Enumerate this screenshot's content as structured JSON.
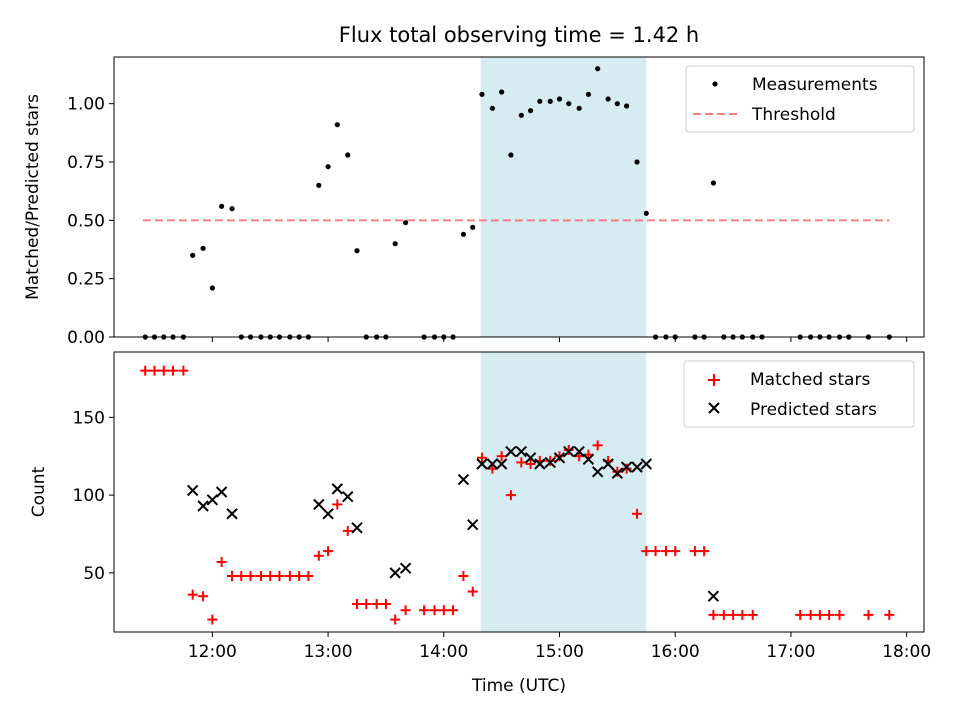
{
  "title": "Flux total observing time = 1.42 h",
  "colors": {
    "measurement": "#000000",
    "threshold": "#f08080",
    "matched": "#ff0000",
    "predicted": "#000000",
    "span": "#add8e6"
  },
  "chart_data": [
    {
      "type": "scatter",
      "panel": "top",
      "ylabel": "Matched/Predicted stars",
      "xlim": [
        11.15,
        18.15
      ],
      "ylim": [
        0,
        1.2
      ],
      "yticks": [
        0,
        0.25,
        0.5,
        0.75,
        1.0
      ],
      "ytick_labels": [
        "0.00",
        "0.25",
        "0.50",
        "0.75",
        "1.00"
      ],
      "highlight_span": [
        14.32,
        15.75
      ],
      "legend": {
        "placement": "top-right",
        "entries": [
          "Measurements",
          "Threshold"
        ]
      },
      "threshold": {
        "name": "Threshold",
        "y": 0.5,
        "x": [
          11.4,
          17.85
        ]
      },
      "series": [
        {
          "name": "Measurements",
          "points": [
            [
              11.42,
              0
            ],
            [
              11.5,
              0
            ],
            [
              11.58,
              0
            ],
            [
              11.66,
              0
            ],
            [
              11.75,
              0
            ],
            [
              11.83,
              0.35
            ],
            [
              11.92,
              0.38
            ],
            [
              12.0,
              0.21
            ],
            [
              12.08,
              0.56
            ],
            [
              12.17,
              0.55
            ],
            [
              12.25,
              0
            ],
            [
              12.33,
              0
            ],
            [
              12.42,
              0
            ],
            [
              12.5,
              0
            ],
            [
              12.58,
              0
            ],
            [
              12.67,
              0
            ],
            [
              12.75,
              0
            ],
            [
              12.83,
              0
            ],
            [
              12.92,
              0.65
            ],
            [
              13.0,
              0.73
            ],
            [
              13.08,
              0.91
            ],
            [
              13.17,
              0.78
            ],
            [
              13.25,
              0.37
            ],
            [
              13.33,
              0
            ],
            [
              13.42,
              0
            ],
            [
              13.5,
              0
            ],
            [
              13.58,
              0.4
            ],
            [
              13.67,
              0.49
            ],
            [
              13.83,
              0
            ],
            [
              13.92,
              0
            ],
            [
              14.0,
              0
            ],
            [
              14.08,
              0
            ],
            [
              14.17,
              0.44
            ],
            [
              14.25,
              0.47
            ],
            [
              14.33,
              1.04
            ],
            [
              14.42,
              0.98
            ],
            [
              14.5,
              1.05
            ],
            [
              14.58,
              0.78
            ],
            [
              14.67,
              0.95
            ],
            [
              14.75,
              0.97
            ],
            [
              14.83,
              1.01
            ],
            [
              14.92,
              1.01
            ],
            [
              15.0,
              1.02
            ],
            [
              15.08,
              1.0
            ],
            [
              15.17,
              0.98
            ],
            [
              15.25,
              1.04
            ],
            [
              15.33,
              1.15
            ],
            [
              15.42,
              1.02
            ],
            [
              15.5,
              1.0
            ],
            [
              15.58,
              0.99
            ],
            [
              15.67,
              0.75
            ],
            [
              15.75,
              0.53
            ],
            [
              15.83,
              0
            ],
            [
              15.92,
              0
            ],
            [
              16.0,
              0
            ],
            [
              16.17,
              0
            ],
            [
              16.25,
              0
            ],
            [
              16.33,
              0.66
            ],
            [
              16.42,
              0
            ],
            [
              16.5,
              0
            ],
            [
              16.58,
              0
            ],
            [
              16.67,
              0
            ],
            [
              16.75,
              0
            ],
            [
              17.08,
              0
            ],
            [
              17.17,
              0
            ],
            [
              17.25,
              0
            ],
            [
              17.33,
              0
            ],
            [
              17.42,
              0
            ],
            [
              17.5,
              0
            ],
            [
              17.67,
              0
            ],
            [
              17.85,
              0
            ]
          ]
        }
      ]
    },
    {
      "type": "scatter",
      "panel": "bottom",
      "xlabel": "Time (UTC)",
      "ylabel": "Count",
      "xlim": [
        11.15,
        18.15
      ],
      "ylim": [
        12,
        192
      ],
      "yticks": [
        50,
        100,
        150
      ],
      "xticks": [
        12,
        13,
        14,
        15,
        16,
        17,
        18
      ],
      "xtick_labels": [
        "12:00",
        "13:00",
        "14:00",
        "15:00",
        "16:00",
        "17:00",
        "18:00"
      ],
      "highlight_span": [
        14.32,
        15.75
      ],
      "legend": {
        "placement": "top-right",
        "entries": [
          "Matched stars",
          "Predicted stars"
        ]
      },
      "series": [
        {
          "name": "Matched stars",
          "marker": "plus",
          "points": [
            [
              11.42,
              180
            ],
            [
              11.5,
              180
            ],
            [
              11.58,
              180
            ],
            [
              11.66,
              180
            ],
            [
              11.75,
              180
            ],
            [
              11.83,
              36
            ],
            [
              11.92,
              35
            ],
            [
              12.0,
              20
            ],
            [
              12.08,
              57
            ],
            [
              12.17,
              48
            ],
            [
              12.25,
              48
            ],
            [
              12.33,
              48
            ],
            [
              12.42,
              48
            ],
            [
              12.5,
              48
            ],
            [
              12.58,
              48
            ],
            [
              12.67,
              48
            ],
            [
              12.75,
              48
            ],
            [
              12.83,
              48
            ],
            [
              12.92,
              61
            ],
            [
              13.0,
              64
            ],
            [
              13.08,
              94
            ],
            [
              13.17,
              77
            ],
            [
              13.25,
              30
            ],
            [
              13.33,
              30
            ],
            [
              13.42,
              30
            ],
            [
              13.5,
              30
            ],
            [
              13.58,
              20
            ],
            [
              13.67,
              26
            ],
            [
              13.83,
              26
            ],
            [
              13.92,
              26
            ],
            [
              14.0,
              26
            ],
            [
              14.08,
              26
            ],
            [
              14.17,
              48
            ],
            [
              14.25,
              38
            ],
            [
              14.33,
              124
            ],
            [
              14.42,
              117
            ],
            [
              14.5,
              125
            ],
            [
              14.58,
              100
            ],
            [
              14.67,
              121
            ],
            [
              14.75,
              120
            ],
            [
              14.83,
              122
            ],
            [
              14.92,
              122
            ],
            [
              15.0,
              125
            ],
            [
              15.08,
              129
            ],
            [
              15.17,
              125
            ],
            [
              15.25,
              126
            ],
            [
              15.33,
              132
            ],
            [
              15.42,
              122
            ],
            [
              15.5,
              115
            ],
            [
              15.58,
              117
            ],
            [
              15.67,
              88
            ],
            [
              15.75,
              64
            ],
            [
              15.83,
              64
            ],
            [
              15.92,
              64
            ],
            [
              16.0,
              64
            ],
            [
              16.17,
              64
            ],
            [
              16.25,
              64
            ],
            [
              16.33,
              23
            ],
            [
              16.42,
              23
            ],
            [
              16.5,
              23
            ],
            [
              16.58,
              23
            ],
            [
              16.67,
              23
            ],
            [
              17.08,
              23
            ],
            [
              17.17,
              23
            ],
            [
              17.25,
              23
            ],
            [
              17.33,
              23
            ],
            [
              17.42,
              23
            ],
            [
              17.67,
              23
            ],
            [
              17.85,
              23
            ]
          ]
        },
        {
          "name": "Predicted stars",
          "marker": "x",
          "points": [
            [
              11.83,
              103
            ],
            [
              11.92,
              93
            ],
            [
              12.0,
              97
            ],
            [
              12.08,
              102
            ],
            [
              12.17,
              88
            ],
            [
              12.92,
              94
            ],
            [
              13.0,
              88
            ],
            [
              13.08,
              104
            ],
            [
              13.17,
              99
            ],
            [
              13.25,
              79
            ],
            [
              13.58,
              50
            ],
            [
              13.67,
              53
            ],
            [
              14.17,
              110
            ],
            [
              14.25,
              81
            ],
            [
              14.33,
              120
            ],
            [
              14.42,
              120
            ],
            [
              14.5,
              120
            ],
            [
              14.58,
              128
            ],
            [
              14.67,
              128
            ],
            [
              14.75,
              124
            ],
            [
              14.83,
              120
            ],
            [
              14.92,
              121
            ],
            [
              15.0,
              124
            ],
            [
              15.08,
              128
            ],
            [
              15.17,
              128
            ],
            [
              15.25,
              123
            ],
            [
              15.33,
              115
            ],
            [
              15.42,
              120
            ],
            [
              15.5,
              114
            ],
            [
              15.58,
              118
            ],
            [
              15.67,
              118
            ],
            [
              15.75,
              120
            ],
            [
              16.33,
              35
            ]
          ]
        }
      ]
    }
  ]
}
